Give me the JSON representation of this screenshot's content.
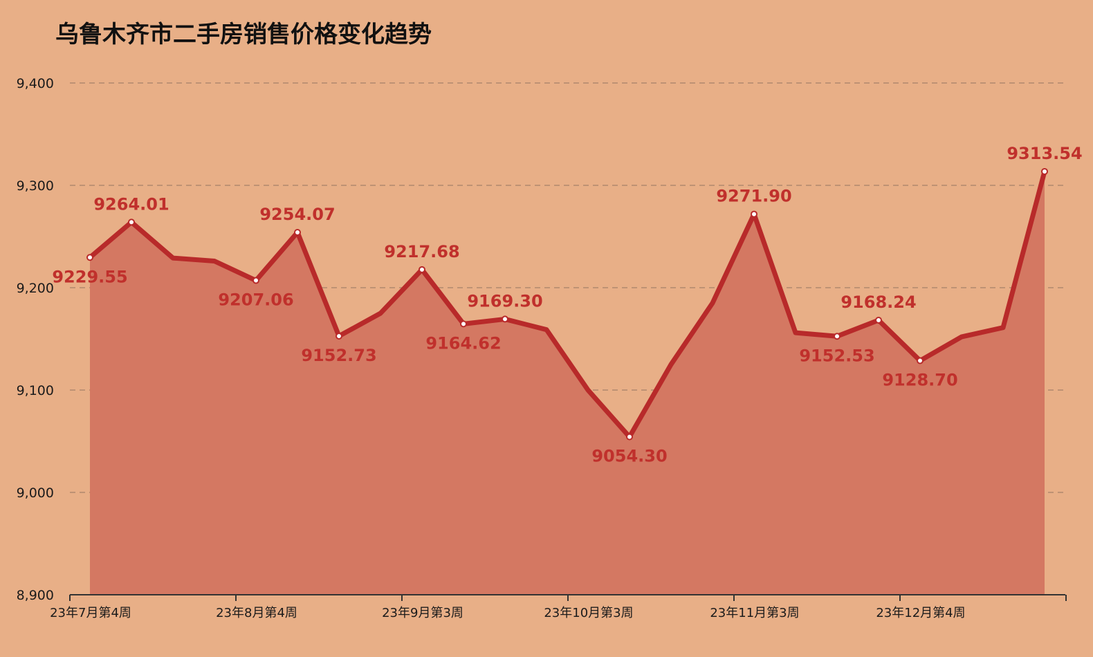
{
  "title": "乌鲁木齐市二手房销售价格变化趋势",
  "colors": {
    "background": "#E8AF87",
    "line": "#B82A2A",
    "area": "#D47862",
    "label": "#C0302C",
    "grid": "#A8826A",
    "marker_fill": "#FFFFFF"
  },
  "chart_data": {
    "type": "area",
    "title": "乌鲁木齐市二手房销售价格变化趋势",
    "xlabel": "",
    "ylabel": "",
    "ylim": [
      8900,
      9400
    ],
    "yticks": [
      8900,
      9000,
      9100,
      9200,
      9300,
      9400
    ],
    "ytick_labels": [
      "8,900",
      "9,000",
      "9,100",
      "9,200",
      "9,300",
      "9,400"
    ],
    "grid": "horizontal dashed",
    "xtick_labels": [
      {
        "index": 0,
        "label": "23年7月第4周"
      },
      {
        "index": 4,
        "label": "23年8月第4周"
      },
      {
        "index": 8,
        "label": "23年9月第3周"
      },
      {
        "index": 12,
        "label": "23年10月第3周"
      },
      {
        "index": 16,
        "label": "23年11月第3周"
      },
      {
        "index": 20,
        "label": "23年12月第4周"
      }
    ],
    "values": [
      9229.55,
      9264.01,
      9229,
      9226,
      9207.06,
      9254.07,
      9152.73,
      9175,
      9217.68,
      9164.62,
      9169.3,
      9159,
      9100,
      9054.3,
      9125,
      9185,
      9271.9,
      9156,
      9152.53,
      9168.24,
      9128.7,
      9152,
      9161,
      9313.54
    ],
    "data_labels": [
      {
        "index": 0,
        "text": "9229.55",
        "position": "below"
      },
      {
        "index": 1,
        "text": "9264.01",
        "position": "above"
      },
      {
        "index": 4,
        "text": "9207.06",
        "position": "below"
      },
      {
        "index": 5,
        "text": "9254.07",
        "position": "above"
      },
      {
        "index": 6,
        "text": "9152.73",
        "position": "below"
      },
      {
        "index": 8,
        "text": "9217.68",
        "position": "above"
      },
      {
        "index": 9,
        "text": "9164.62",
        "position": "below"
      },
      {
        "index": 10,
        "text": "9169.30",
        "position": "above"
      },
      {
        "index": 13,
        "text": "9054.30",
        "position": "below"
      },
      {
        "index": 16,
        "text": "9271.90",
        "position": "above"
      },
      {
        "index": 18,
        "text": "9152.53",
        "position": "below"
      },
      {
        "index": 19,
        "text": "9168.24",
        "position": "above"
      },
      {
        "index": 20,
        "text": "9128.70",
        "position": "below"
      },
      {
        "index": 23,
        "text": "9313.54",
        "position": "above"
      }
    ]
  }
}
